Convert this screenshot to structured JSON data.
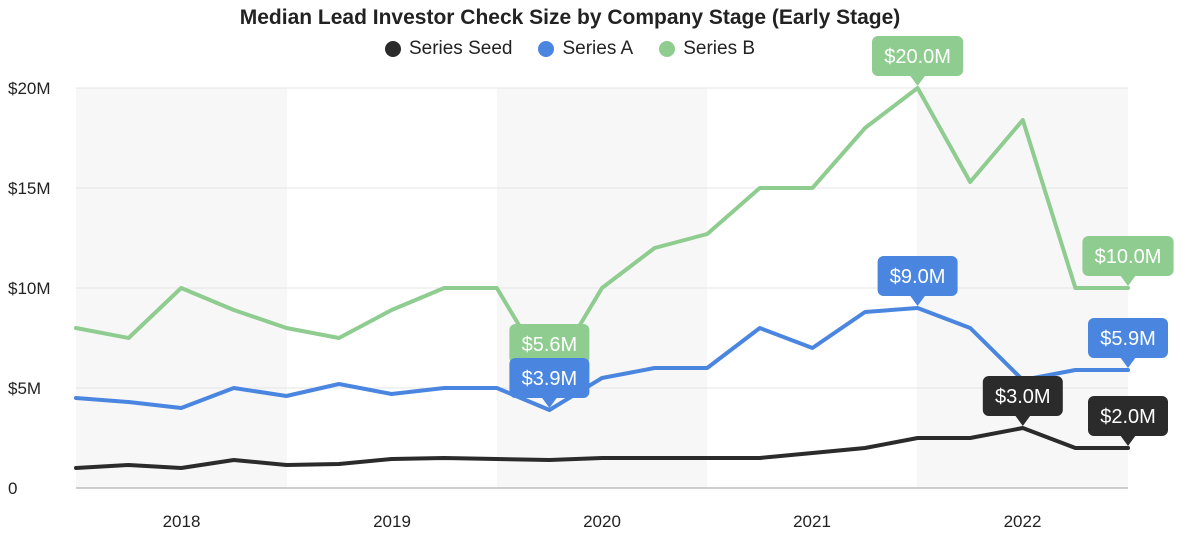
{
  "chart_data": {
    "type": "line",
    "title": "Median Lead Investor Check Size by Company Stage (Early Stage)",
    "xlabel": "",
    "ylabel": "",
    "x_tick_labels": [
      "2018",
      "2019",
      "2020",
      "2021",
      "2022"
    ],
    "y_tick_labels": [
      "0",
      "$5M",
      "$10M",
      "$15M",
      "$20M"
    ],
    "ylim": [
      0,
      20
    ],
    "y_unit": "$M",
    "x": [
      "2017-Q3",
      "2017-Q4",
      "2018-Q1",
      "2018-Q2",
      "2018-Q3",
      "2018-Q4",
      "2019-Q1",
      "2019-Q2",
      "2019-Q3",
      "2019-Q4",
      "2020-Q1",
      "2020-Q2",
      "2020-Q3",
      "2020-Q4",
      "2021-Q1",
      "2021-Q2",
      "2021-Q3",
      "2021-Q4",
      "2022-Q1",
      "2022-Q2",
      "2022-Q3"
    ],
    "grid": true,
    "legend_position": "top-center",
    "series": [
      {
        "name": "Series Seed",
        "color": "#2b2b2b",
        "values": [
          1.0,
          1.15,
          1.0,
          1.4,
          1.15,
          1.2,
          1.45,
          1.5,
          1.45,
          1.4,
          1.5,
          1.5,
          1.5,
          1.5,
          1.75,
          2.0,
          2.5,
          2.5,
          3.0,
          2.0,
          2.0
        ],
        "callouts": [
          {
            "index": 18,
            "label": "$3.0M"
          },
          {
            "index": 20,
            "label": "$2.0M"
          }
        ]
      },
      {
        "name": "Series A",
        "color": "#4a86e0",
        "values": [
          4.5,
          4.3,
          4.0,
          5.0,
          4.6,
          5.2,
          4.7,
          5.0,
          5.0,
          3.9,
          5.5,
          6.0,
          6.0,
          8.0,
          7.0,
          8.8,
          9.0,
          8.0,
          5.4,
          5.9,
          5.9
        ],
        "callouts": [
          {
            "index": 9,
            "label": "$3.9M"
          },
          {
            "index": 16,
            "label": "$9.0M"
          },
          {
            "index": 20,
            "label": "$5.9M"
          }
        ]
      },
      {
        "name": "Series B",
        "color": "#8fcc8f",
        "values": [
          8.0,
          7.5,
          10.0,
          8.9,
          8.0,
          7.5,
          8.9,
          10.0,
          10.0,
          5.6,
          10.0,
          12.0,
          12.7,
          15.0,
          15.0,
          18.0,
          20.0,
          15.3,
          18.4,
          10.0,
          10.0
        ],
        "callouts": [
          {
            "index": 9,
            "label": "$5.6M"
          },
          {
            "index": 16,
            "label": "$20.0M"
          },
          {
            "index": 20,
            "label": "$10.0M"
          }
        ]
      }
    ]
  }
}
